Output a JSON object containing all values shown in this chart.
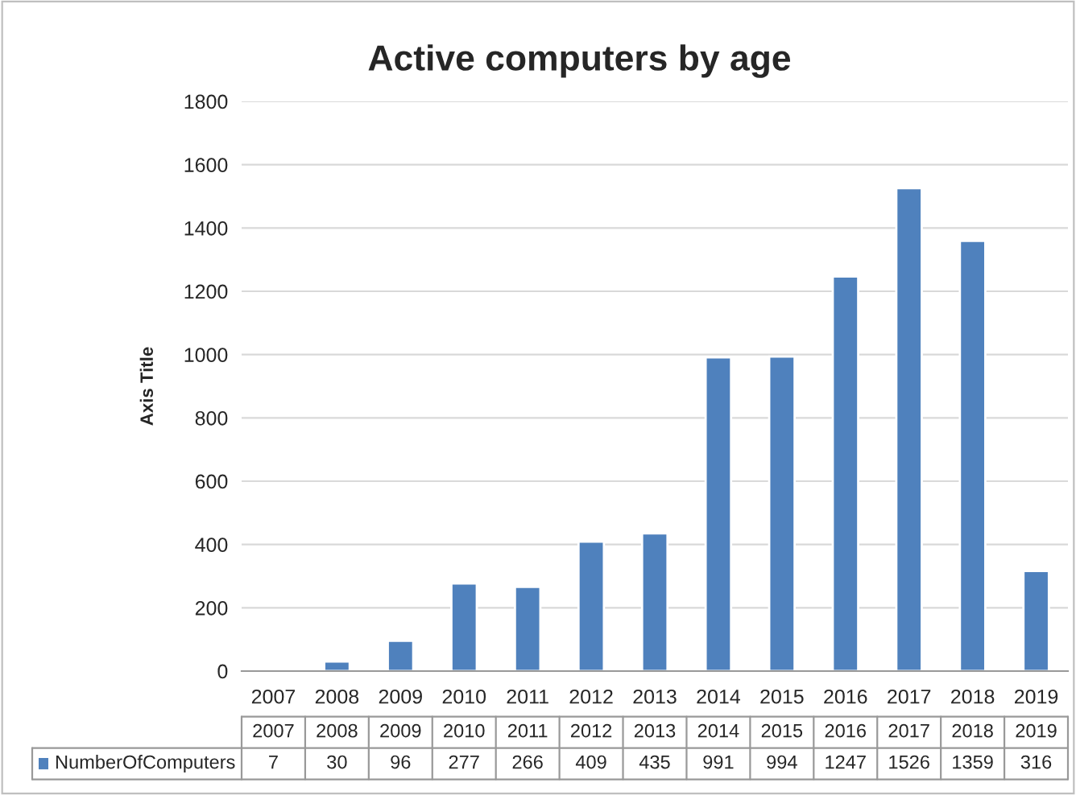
{
  "chart_data": {
    "type": "bar",
    "title": "Active computers by age",
    "ylabel": "Axis Title",
    "categories": [
      "2007",
      "2008",
      "2009",
      "2010",
      "2011",
      "2012",
      "2013",
      "2014",
      "2015",
      "2016",
      "2017",
      "2018",
      "2019"
    ],
    "series": [
      {
        "name": "NumberOfComputers",
        "color": "#4f81bd",
        "values": [
          7,
          30,
          96,
          277,
          266,
          409,
          435,
          991,
          994,
          1247,
          1526,
          1359,
          316
        ]
      }
    ],
    "ylim": [
      0,
      1800
    ],
    "yticks": [
      0,
      200,
      400,
      600,
      800,
      1000,
      1200,
      1400,
      1600,
      1800
    ],
    "grid": "y",
    "legend": "bottom",
    "data_labels": true
  }
}
